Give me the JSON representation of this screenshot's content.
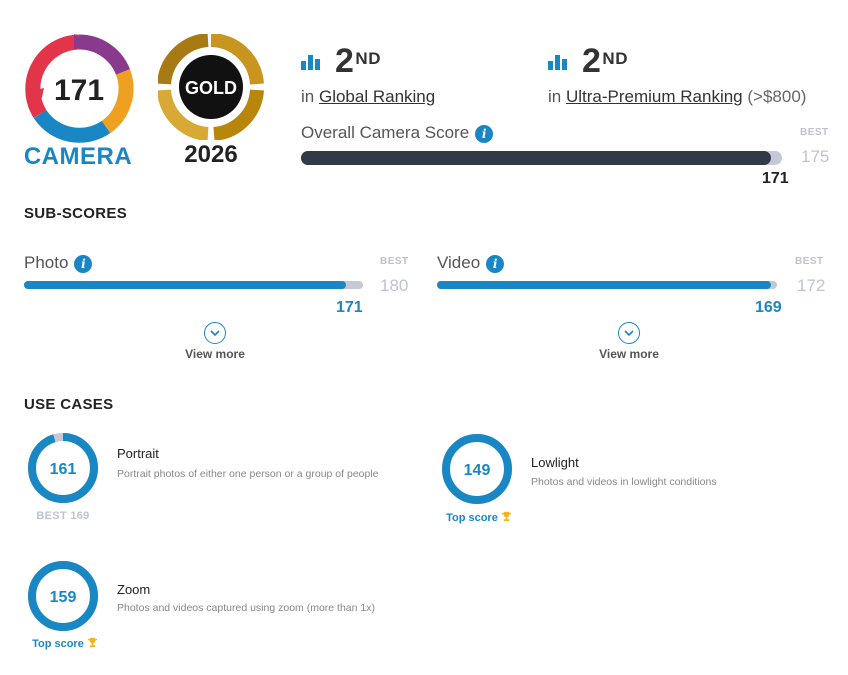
{
  "header": {
    "camera_score": "171",
    "camera_label": "CAMERA",
    "badge_text": "GOLD",
    "badge_year": "2026",
    "colors": {
      "accent": "#1a87c5",
      "dark_bar": "#323a48",
      "track": "#c5c9d6",
      "gold": "#c8961e"
    }
  },
  "rankings": [
    {
      "icon": "bar-chart-icon",
      "rank": "2",
      "suffix": "ND",
      "prefix": "in",
      "link": "Global Ranking",
      "extra": ""
    },
    {
      "icon": "bar-chart-icon",
      "rank": "2",
      "suffix": "ND",
      "prefix": "in",
      "link": "Ultra-Premium Ranking",
      "extra": "(>$800)"
    }
  ],
  "overall": {
    "label": "Overall Camera Score",
    "best_label": "BEST",
    "best": "175",
    "score": "171",
    "fraction": 0.977
  },
  "subscores": {
    "title": "SUB-SCORES",
    "items": [
      {
        "label": "Photo",
        "best_label": "BEST",
        "best": "180",
        "score": "171",
        "fraction": 0.95,
        "view_more": "View more"
      },
      {
        "label": "Video",
        "best_label": "BEST",
        "best": "172",
        "score": "169",
        "fraction": 0.983,
        "view_more": "View more"
      }
    ]
  },
  "use_cases": {
    "title": "USE CASES",
    "items": [
      {
        "name": "Portrait",
        "score": "161",
        "fraction": 0.953,
        "desc": "Portrait photos of either one person or a group of people",
        "footer": "BEST 169",
        "footer_type": "best"
      },
      {
        "name": "Lowlight",
        "score": "149",
        "fraction": 1.0,
        "desc": "Photos and videos in lowlight conditions",
        "footer": "Top score",
        "footer_type": "top"
      },
      {
        "name": "Zoom",
        "score": "159",
        "fraction": 1.0,
        "desc": "Photos and videos captured using zoom (more than 1x)",
        "footer": "Top score",
        "footer_type": "top"
      }
    ]
  }
}
